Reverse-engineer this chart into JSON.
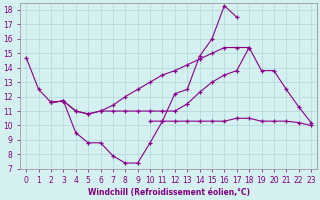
{
  "xlabel": "Windchill (Refroidissement éolien,°C)",
  "line_color": "#8b008b",
  "bg_color": "#d4f0f0",
  "grid_color": "#aed8d8",
  "ylim": [
    7,
    18
  ],
  "xlim": [
    -0.5,
    23.5
  ],
  "curveA_x": [
    0,
    1,
    2,
    3,
    4,
    5,
    6,
    7,
    8,
    9,
    10,
    11,
    12,
    13,
    14,
    15,
    16,
    17
  ],
  "curveA_y": [
    14.7,
    12.5,
    11.6,
    11.7,
    9.5,
    8.8,
    8.8,
    7.9,
    7.4,
    7.4,
    8.8,
    10.3,
    12.2,
    12.5,
    14.8,
    16.0,
    18.3,
    17.5
  ],
  "curveB_x": [
    2,
    3,
    4,
    5,
    6,
    7,
    8,
    9,
    10,
    11,
    12,
    13,
    14,
    15,
    16,
    17,
    18
  ],
  "curveB_y": [
    11.6,
    11.7,
    11.0,
    10.8,
    11.0,
    11.0,
    11.0,
    11.0,
    11.0,
    11.0,
    11.0,
    11.5,
    12.3,
    13.0,
    13.5,
    13.8,
    15.4
  ],
  "curveC_x": [
    2,
    3,
    4,
    5,
    6,
    7,
    8,
    9,
    10,
    11,
    12,
    13,
    14,
    15,
    16,
    17,
    18,
    19,
    20,
    21,
    22,
    23
  ],
  "curveC_y": [
    11.6,
    11.7,
    11.0,
    10.8,
    11.0,
    11.4,
    12.0,
    12.5,
    13.0,
    13.5,
    13.8,
    14.2,
    14.6,
    15.0,
    15.4,
    15.4,
    15.4,
    13.8,
    13.8,
    12.5,
    11.3,
    10.2
  ],
  "curveD_x": [
    10,
    11,
    12,
    13,
    14,
    15,
    16,
    17,
    18,
    19,
    20,
    21,
    22,
    23
  ],
  "curveD_y": [
    10.3,
    10.3,
    10.3,
    10.3,
    10.3,
    10.3,
    10.3,
    10.5,
    10.5,
    10.3,
    10.3,
    10.3,
    10.2,
    10.0
  ]
}
